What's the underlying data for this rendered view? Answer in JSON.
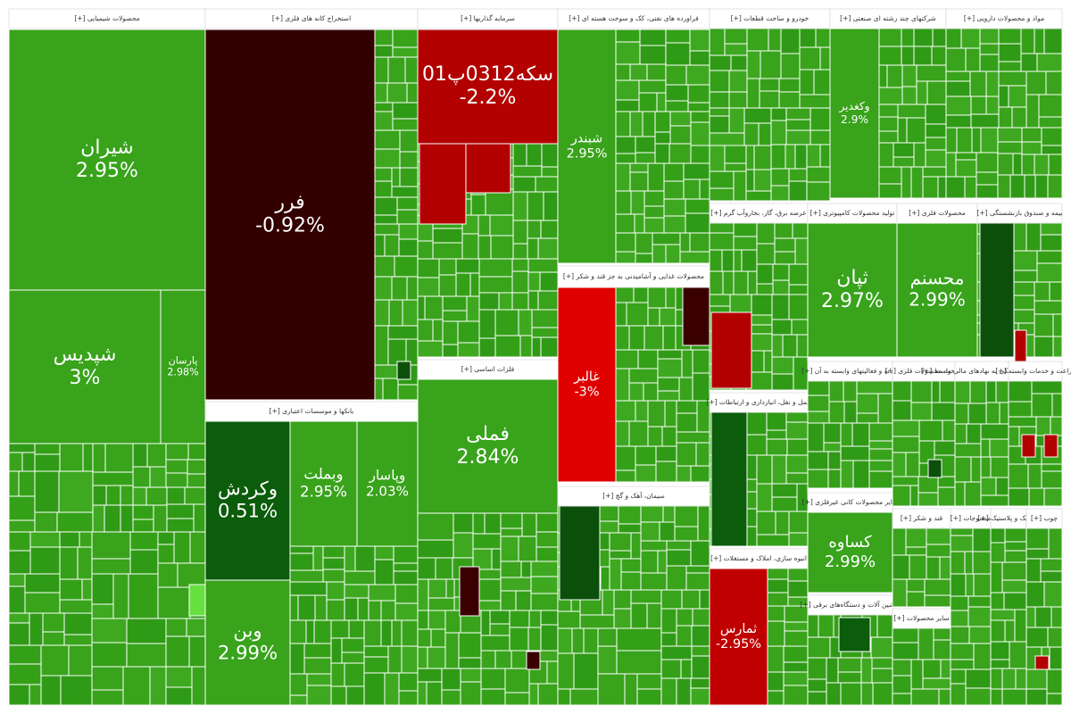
{
  "sectors": [
    {
      "header": "محصولات شیمیایی [+]",
      "tiles": [
        {
          "label": "شیران",
          "change": "2.95%"
        },
        {
          "label": "شپدیس",
          "change": "3%"
        },
        {
          "label": "پارسان",
          "change": "2.98%"
        }
      ]
    },
    {
      "header": "استخراج کانه های فلزی [+]",
      "tiles": [
        {
          "label": "فرر",
          "change": "-0.92%"
        }
      ]
    },
    {
      "header": "بانکها و موسسات اعتباری [+]",
      "tiles": [
        {
          "label": "وکردش",
          "change": "0.51%"
        },
        {
          "label": "وبملت",
          "change": "2.95%"
        },
        {
          "label": "وپاسار",
          "change": "2.03%"
        },
        {
          "label": "وبن",
          "change": "2.99%"
        }
      ]
    },
    {
      "header": "سرمایه گذاریها [+]",
      "tiles": [
        {
          "label": "سکه0312پ01",
          "change": "-2.2%"
        }
      ]
    },
    {
      "header": "فلزات اساسی [+]",
      "tiles": [
        {
          "label": "فملی",
          "change": "2.84%"
        }
      ]
    },
    {
      "header": "فراورده های نفتی، کک و سوخت هسته ای [+]",
      "tiles": [
        {
          "label": "شبندر",
          "change": "2.95%"
        }
      ]
    },
    {
      "header": "محصولات غذایی و آشامیدنی به جز قند و شکر [+]",
      "tiles": [
        {
          "label": "غالبر",
          "change": "-3%"
        }
      ]
    },
    {
      "header": "سیمان، آهک و گچ [+]",
      "tiles": []
    },
    {
      "header": "خودرو و ساخت قطعات [+]",
      "tiles": []
    },
    {
      "header": "شرکتهای چند رشته ای صنعتی [+]",
      "tiles": [
        {
          "label": "وکغدیر",
          "change": "2.9%"
        }
      ]
    },
    {
      "header": "مواد و محصولات دارویی [+]",
      "tiles": []
    },
    {
      "header": "عرضه برق، گاز، بخاروآب گرم [+]",
      "tiles": []
    },
    {
      "header": "تولید محصولات کامپیوتری [+]",
      "tiles": [
        {
          "label": "ثپان",
          "change": "2.97%"
        }
      ]
    },
    {
      "header": "محصولات فلزی [+]",
      "tiles": [
        {
          "label": "محسنم",
          "change": "2.99%"
        }
      ]
    },
    {
      "header": "بیمه و صندوق بازنشستگی [+]",
      "tiles": []
    },
    {
      "header": "حمل و نقل، انبارداری و ارتباطات [+]",
      "tiles": []
    },
    {
      "header": "انبوه سازی، املاک و مستغلات [+]",
      "tiles": [
        {
          "label": "ثمارس",
          "change": "-2.95%"
        }
      ]
    },
    {
      "header": "رایانه و فعالیتهای وابسته به آن [+]",
      "tiles": []
    },
    {
      "header": "سایر محصولات کانی غیرفلزی [+]",
      "tiles": [
        {
          "label": "کساوه",
          "change": "2.99%"
        }
      ]
    },
    {
      "header": "ماشین آلات و دستگاه‌های برقی [+]",
      "tiles": []
    },
    {
      "header": "ساخت محصولات فلزی [+]",
      "tiles": []
    },
    {
      "header": "فعالیتهای کمکی به نهادهای مالی واسط [+]",
      "tiles": []
    },
    {
      "header": "زراعت و خدمات وابسته [+]",
      "tiles": []
    },
    {
      "header": "قند و شکر [+]",
      "tiles": []
    },
    {
      "header": "سایر محصولات [+]",
      "tiles": []
    },
    {
      "header": "منسوجات [+]",
      "tiles": []
    },
    {
      "header": "لاستیک و پلاستیک [+]",
      "tiles": []
    },
    {
      "header": "چوب [+]",
      "tiles": []
    }
  ]
}
